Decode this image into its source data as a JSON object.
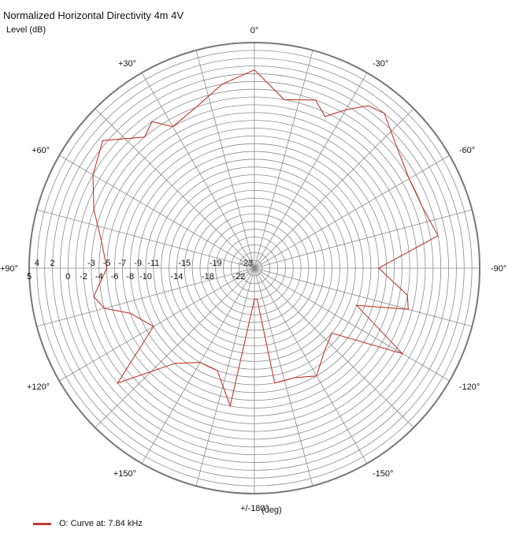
{
  "chart_data": {
    "type": "polar",
    "title": "Normalized Horizontal Directivity 4m 4V",
    "r_label": "Level  (dB)",
    "angle_unit_label": "(deg)",
    "r_range": [
      -24,
      5
    ],
    "grid": true,
    "angle_labels": [
      {
        "angle": 0,
        "text": "0°"
      },
      {
        "angle": -30,
        "text": "-30°"
      },
      {
        "angle": -60,
        "text": "-60°"
      },
      {
        "angle": -90,
        "text": "-90°"
      },
      {
        "angle": -120,
        "text": "-120°"
      },
      {
        "angle": -150,
        "text": "-150°"
      },
      {
        "angle": 180,
        "text": "+/-180°"
      },
      {
        "angle": 150,
        "text": "+150°"
      },
      {
        "angle": 120,
        "text": "+120°"
      },
      {
        "angle": 90,
        "text": "+90°"
      },
      {
        "angle": 60,
        "text": "+60°"
      },
      {
        "angle": 30,
        "text": "+30°"
      }
    ],
    "r_ticks_upper": [
      4,
      2,
      -3,
      -5,
      -7,
      -9,
      -11,
      -15,
      -19,
      -23
    ],
    "r_ticks_lower": [
      5,
      0,
      -2,
      -4,
      -6,
      -8,
      -10,
      -14,
      -18,
      -22
    ],
    "series": [
      {
        "name": "O: Curve at: 7.84 kHz",
        "color": "#c0392b",
        "points": [
          {
            "angle": 0,
            "value": 1.5
          },
          {
            "angle": -10,
            "value": -2
          },
          {
            "angle": -20,
            "value": -1
          },
          {
            "angle": -25,
            "value": -2.5
          },
          {
            "angle": -30,
            "value": -0.5
          },
          {
            "angle": -35,
            "value": 1.5
          },
          {
            "angle": -40,
            "value": 2
          },
          {
            "angle": -50,
            "value": 0
          },
          {
            "angle": -60,
            "value": -1
          },
          {
            "angle": -70,
            "value": -1
          },
          {
            "angle": -80,
            "value": 0
          },
          {
            "angle": -90,
            "value": -8
          },
          {
            "angle": -100,
            "value": -4
          },
          {
            "angle": -105,
            "value": -3.5
          },
          {
            "angle": -110,
            "value": -10
          },
          {
            "angle": -120,
            "value": -2
          },
          {
            "angle": -130,
            "value": -11
          },
          {
            "angle": -140,
            "value": -10
          },
          {
            "angle": -150,
            "value": -8
          },
          {
            "angle": -160,
            "value": -9
          },
          {
            "angle": -170,
            "value": -9
          },
          {
            "angle": -175,
            "value": -20
          },
          {
            "angle": 180,
            "value": -20
          },
          {
            "angle": 175,
            "value": -17.5
          },
          {
            "angle": 170,
            "value": -6
          },
          {
            "angle": 160,
            "value": -10
          },
          {
            "angle": 150,
            "value": -10
          },
          {
            "angle": 140,
            "value": -8
          },
          {
            "angle": 130,
            "value": -1
          },
          {
            "angle": 120,
            "value": -9
          },
          {
            "angle": 110,
            "value": -7
          },
          {
            "angle": 105,
            "value": -4
          },
          {
            "angle": 100,
            "value": -3
          },
          {
            "angle": 90,
            "value": -5
          },
          {
            "angle": 80,
            "value": -4
          },
          {
            "angle": 70,
            "value": -2
          },
          {
            "angle": 60,
            "value": 0
          },
          {
            "angle": 50,
            "value": 1.5
          },
          {
            "angle": 40,
            "value": -2
          },
          {
            "angle": 35,
            "value": -1
          },
          {
            "angle": 30,
            "value": -3
          },
          {
            "angle": 20,
            "value": -2
          },
          {
            "angle": 10,
            "value": 0
          },
          {
            "angle": 0,
            "value": 1.5
          }
        ]
      }
    ]
  }
}
